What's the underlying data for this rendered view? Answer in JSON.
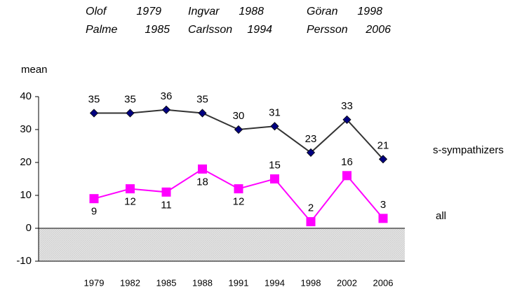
{
  "chart_data": {
    "type": "line",
    "y_label": "mean",
    "annotations": [
      {
        "first": "Olof",
        "last": "Palme",
        "from": "1979",
        "to": "1985"
      },
      {
        "first": "Ingvar",
        "last": "Carlsson",
        "from": "1988",
        "to": "1994"
      },
      {
        "first": "Göran",
        "last": "Persson",
        "from": "1998",
        "to": "2006"
      }
    ],
    "categories": [
      "1979",
      "1982",
      "1985",
      "1988",
      "1991",
      "1994",
      "1998",
      "2002",
      "2006"
    ],
    "series": [
      {
        "name": "s-sympathizers",
        "color": "#000080",
        "line_color": "#333333",
        "marker": "diamond",
        "values": [
          35,
          35,
          36,
          35,
          30,
          31,
          23,
          33,
          21
        ]
      },
      {
        "name": "all",
        "color": "#ff00ff",
        "line_color": "#ff00ff",
        "marker": "square",
        "values": [
          9,
          12,
          11,
          18,
          12,
          15,
          2,
          16,
          3
        ]
      }
    ],
    "ylim": [
      -10,
      40
    ],
    "yticks": [
      -10,
      0,
      10,
      20,
      30,
      40
    ]
  }
}
